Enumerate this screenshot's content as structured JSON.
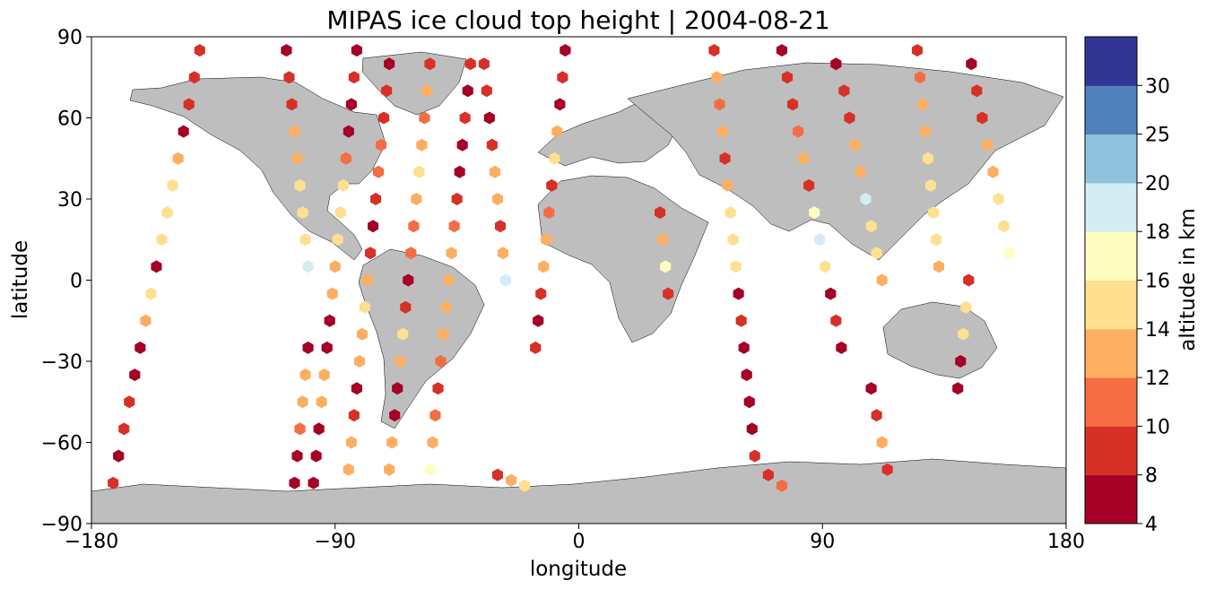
{
  "chart_data": {
    "type": "scatter",
    "title": "MIPAS ice cloud top height | 2004-08-21",
    "xlabel": "longitude",
    "ylabel": "latitude",
    "xlim": [
      -180,
      180
    ],
    "ylim": [
      -90,
      90
    ],
    "x_ticks": [
      "−180",
      "−90",
      "0",
      "90",
      "180"
    ],
    "y_ticks": [
      "90",
      "60",
      "30",
      "0",
      "−30",
      "−60",
      "−90"
    ],
    "grid": false,
    "background": "map of continents (land in grey)",
    "colors": {
      "land": "#bebebe",
      "coastline": "#000000",
      "no_cloud_marker": "#000000"
    },
    "colorbar": {
      "label": "altitude in km",
      "bounds": [
        4,
        8,
        10,
        12,
        14,
        16,
        18,
        20,
        25,
        30
      ],
      "tick_labels": [
        "4",
        "8",
        "10",
        "12",
        "14",
        "16",
        "18",
        "20",
        "25",
        "30"
      ],
      "colors": [
        "#a50026",
        "#d73027",
        "#f46d43",
        "#fdae61",
        "#fee090",
        "#fffdc0",
        "#d4ecf3",
        "#8fc3dd",
        "#4f82bc",
        "#313695"
      ]
    },
    "series": [
      {
        "points": [
          [
            -140,
            85
          ],
          [
            -142,
            75
          ],
          [
            -144,
            65
          ],
          [
            -146,
            55
          ],
          [
            -148,
            45
          ],
          [
            -150,
            35
          ],
          [
            -152,
            25
          ],
          [
            -154,
            15
          ],
          [
            -156,
            5
          ],
          [
            -158,
            -5
          ],
          [
            -160,
            -15
          ],
          [
            -162,
            -25
          ],
          [
            -164,
            -35
          ],
          [
            -166,
            -45
          ],
          [
            -168,
            -55
          ],
          [
            -170,
            -65
          ],
          [
            -172,
            -75
          ]
        ],
        "values": [
          9,
          8,
          8,
          7,
          13,
          15,
          15,
          14,
          6,
          14,
          13,
          7,
          6,
          9,
          8,
          7,
          8
        ]
      },
      {
        "points": [
          [
            -108,
            85
          ],
          [
            -107,
            75
          ],
          [
            -106,
            65
          ],
          [
            -105,
            55
          ],
          [
            -104,
            45
          ],
          [
            -103,
            35
          ],
          [
            -102,
            25
          ],
          [
            -101,
            15
          ],
          [
            -100,
            5
          ]
        ],
        "values": [
          7,
          8,
          9,
          12,
          13,
          15,
          15,
          14,
          18
        ]
      },
      {
        "points": [
          [
            -100,
            -25
          ],
          [
            -101,
            -35
          ],
          [
            -102,
            -45
          ],
          [
            -103,
            -55
          ],
          [
            -104,
            -65
          ],
          [
            -105,
            -75
          ]
        ],
        "values": [
          6,
          12,
          13,
          11,
          6,
          7
        ]
      },
      {
        "points": [
          [
            -82,
            85
          ],
          [
            -83,
            75
          ],
          [
            -84,
            65
          ],
          [
            -85,
            55
          ],
          [
            -86,
            45
          ],
          [
            -87,
            35
          ],
          [
            -88,
            25
          ],
          [
            -89,
            15
          ],
          [
            -90,
            5
          ],
          [
            -91,
            -5
          ],
          [
            -92,
            -15
          ],
          [
            -93,
            -25
          ],
          [
            -94,
            -35
          ],
          [
            -95,
            -45
          ],
          [
            -96,
            -55
          ],
          [
            -97,
            -65
          ],
          [
            -98,
            -75
          ]
        ],
        "values": [
          7,
          8,
          7,
          6,
          11,
          14,
          15,
          14,
          13,
          13,
          7,
          7,
          13,
          13,
          7,
          7,
          6
        ]
      },
      {
        "points": [
          [
            -70,
            80
          ],
          [
            -71,
            70
          ],
          [
            -72,
            60
          ],
          [
            -73,
            50
          ],
          [
            -74,
            40
          ],
          [
            -75,
            30
          ],
          [
            -76,
            20
          ],
          [
            -77,
            10
          ],
          [
            -78,
            0
          ],
          [
            -79,
            -10
          ],
          [
            -80,
            -20
          ],
          [
            -81,
            -30
          ],
          [
            -82,
            -40
          ],
          [
            -83,
            -50
          ],
          [
            -84,
            -60
          ],
          [
            -85,
            -70
          ]
        ],
        "values": [
          7,
          8,
          9,
          10,
          11,
          9,
          7,
          8,
          13,
          14,
          13,
          12,
          7,
          8,
          13,
          12
        ]
      },
      {
        "points": [
          [
            -55,
            80
          ],
          [
            -56,
            70
          ],
          [
            -57,
            60
          ],
          [
            -58,
            50
          ],
          [
            -59,
            40
          ],
          [
            -60,
            30
          ],
          [
            -61,
            20
          ],
          [
            -62,
            10
          ],
          [
            -63,
            0
          ],
          [
            -64,
            -10
          ],
          [
            -65,
            -20
          ],
          [
            -66,
            -30
          ],
          [
            -67,
            -40
          ],
          [
            -68,
            -50
          ],
          [
            -69,
            -60
          ],
          [
            -70,
            -70
          ]
        ],
        "values": [
          9,
          12,
          11,
          13,
          14,
          13,
          11,
          10,
          7,
          8,
          14,
          13,
          7,
          6,
          13,
          13
        ]
      },
      {
        "points": [
          [
            -40,
            80
          ],
          [
            -41,
            70
          ],
          [
            -42,
            60
          ],
          [
            -43,
            50
          ],
          [
            -44,
            40
          ],
          [
            -45,
            30
          ],
          [
            -46,
            20
          ],
          [
            -47,
            10
          ],
          [
            -48,
            0
          ],
          [
            -49,
            -10
          ],
          [
            -50,
            -20
          ],
          [
            -51,
            -30
          ],
          [
            -52,
            -40
          ],
          [
            -53,
            -50
          ],
          [
            -54,
            -60
          ],
          [
            -55,
            -70
          ]
        ],
        "values": [
          8,
          7,
          8,
          6,
          7,
          8,
          11,
          12,
          13,
          12,
          13,
          11,
          8,
          11,
          12,
          17
        ]
      },
      {
        "points": [
          [
            -35,
            80
          ],
          [
            -34,
            70
          ],
          [
            -33,
            60
          ],
          [
            -32,
            50
          ],
          [
            -31,
            40
          ],
          [
            -30,
            30
          ],
          [
            -29,
            20
          ],
          [
            -28,
            10
          ],
          [
            -27,
            0
          ]
        ],
        "values": [
          9,
          8,
          7,
          8,
          13,
          12,
          9,
          13,
          18
        ]
      },
      {
        "points": [
          [
            -5,
            85
          ],
          [
            -6,
            75
          ],
          [
            -7,
            65
          ],
          [
            -8,
            55
          ],
          [
            -9,
            45
          ],
          [
            -10,
            35
          ],
          [
            -11,
            25
          ],
          [
            -12,
            15
          ],
          [
            -13,
            5
          ],
          [
            -14,
            -5
          ],
          [
            -15,
            -15
          ],
          [
            -16,
            -25
          ]
        ],
        "values": [
          7,
          8,
          6,
          13,
          14,
          9,
          10,
          12,
          12,
          9,
          6,
          8
        ]
      },
      {
        "points": [
          [
            -30,
            -72
          ],
          [
            -25,
            -74
          ],
          [
            -20,
            -76
          ]
        ],
        "values": [
          9,
          13,
          14
        ]
      },
      {
        "points": [
          [
            30,
            25
          ],
          [
            31,
            15
          ],
          [
            32,
            5
          ],
          [
            33,
            -5
          ]
        ],
        "values": [
          8,
          12,
          17,
          9
        ]
      },
      {
        "points": [
          [
            50,
            85
          ],
          [
            51,
            75
          ],
          [
            52,
            65
          ],
          [
            53,
            55
          ],
          [
            54,
            45
          ],
          [
            55,
            35
          ],
          [
            56,
            25
          ],
          [
            57,
            15
          ],
          [
            58,
            5
          ],
          [
            59,
            -5
          ],
          [
            60,
            -15
          ],
          [
            61,
            -25
          ],
          [
            62,
            -35
          ],
          [
            63,
            -45
          ],
          [
            64,
            -55
          ],
          [
            65,
            -65
          ],
          [
            70,
            -72
          ],
          [
            75,
            -76
          ]
        ],
        "values": [
          9,
          12,
          11,
          13,
          8,
          12,
          14,
          15,
          14,
          7,
          8,
          7,
          6,
          6,
          7,
          8,
          9,
          11
        ]
      },
      {
        "points": [
          [
            75,
            85
          ],
          [
            77,
            75
          ],
          [
            79,
            65
          ],
          [
            81,
            55
          ],
          [
            83,
            45
          ],
          [
            85,
            35
          ],
          [
            87,
            25
          ],
          [
            89,
            15
          ],
          [
            91,
            5
          ],
          [
            93,
            -5
          ],
          [
            95,
            -15
          ],
          [
            97,
            -25
          ]
        ],
        "values": [
          7,
          8,
          9,
          11,
          13,
          9,
          17,
          19,
          15,
          7,
          8,
          7
        ]
      },
      {
        "points": [
          [
            95,
            80
          ],
          [
            98,
            70
          ],
          [
            100,
            60
          ],
          [
            102,
            50
          ],
          [
            104,
            40
          ],
          [
            106,
            30
          ],
          [
            108,
            20
          ],
          [
            110,
            10
          ],
          [
            112,
            0
          ]
        ],
        "values": [
          7,
          8,
          9,
          13,
          12,
          18,
          15,
          14,
          13
        ]
      },
      {
        "points": [
          [
            125,
            85
          ],
          [
            126,
            75
          ],
          [
            127,
            65
          ],
          [
            128,
            55
          ],
          [
            129,
            45
          ],
          [
            130,
            35
          ],
          [
            131,
            25
          ],
          [
            132,
            15
          ],
          [
            133,
            5
          ]
        ],
        "values": [
          9,
          11,
          12,
          13,
          14,
          15,
          15,
          14,
          13
        ]
      },
      {
        "points": [
          [
            108,
            -40
          ],
          [
            110,
            -50
          ],
          [
            112,
            -60
          ],
          [
            114,
            -70
          ]
        ],
        "values": [
          7,
          8,
          13,
          9
        ]
      },
      {
        "points": [
          [
            145,
            80
          ],
          [
            147,
            70
          ],
          [
            149,
            60
          ],
          [
            151,
            50
          ],
          [
            153,
            40
          ],
          [
            155,
            30
          ],
          [
            157,
            20
          ],
          [
            159,
            10
          ]
        ],
        "values": [
          7,
          8,
          9,
          12,
          13,
          15,
          15,
          17
        ]
      },
      {
        "points": [
          [
            140,
            -40
          ],
          [
            141,
            -30
          ],
          [
            142,
            -20
          ],
          [
            143,
            -10
          ],
          [
            144,
            0
          ]
        ],
        "values": [
          6,
          7,
          15,
          14,
          8
        ]
      }
    ]
  }
}
